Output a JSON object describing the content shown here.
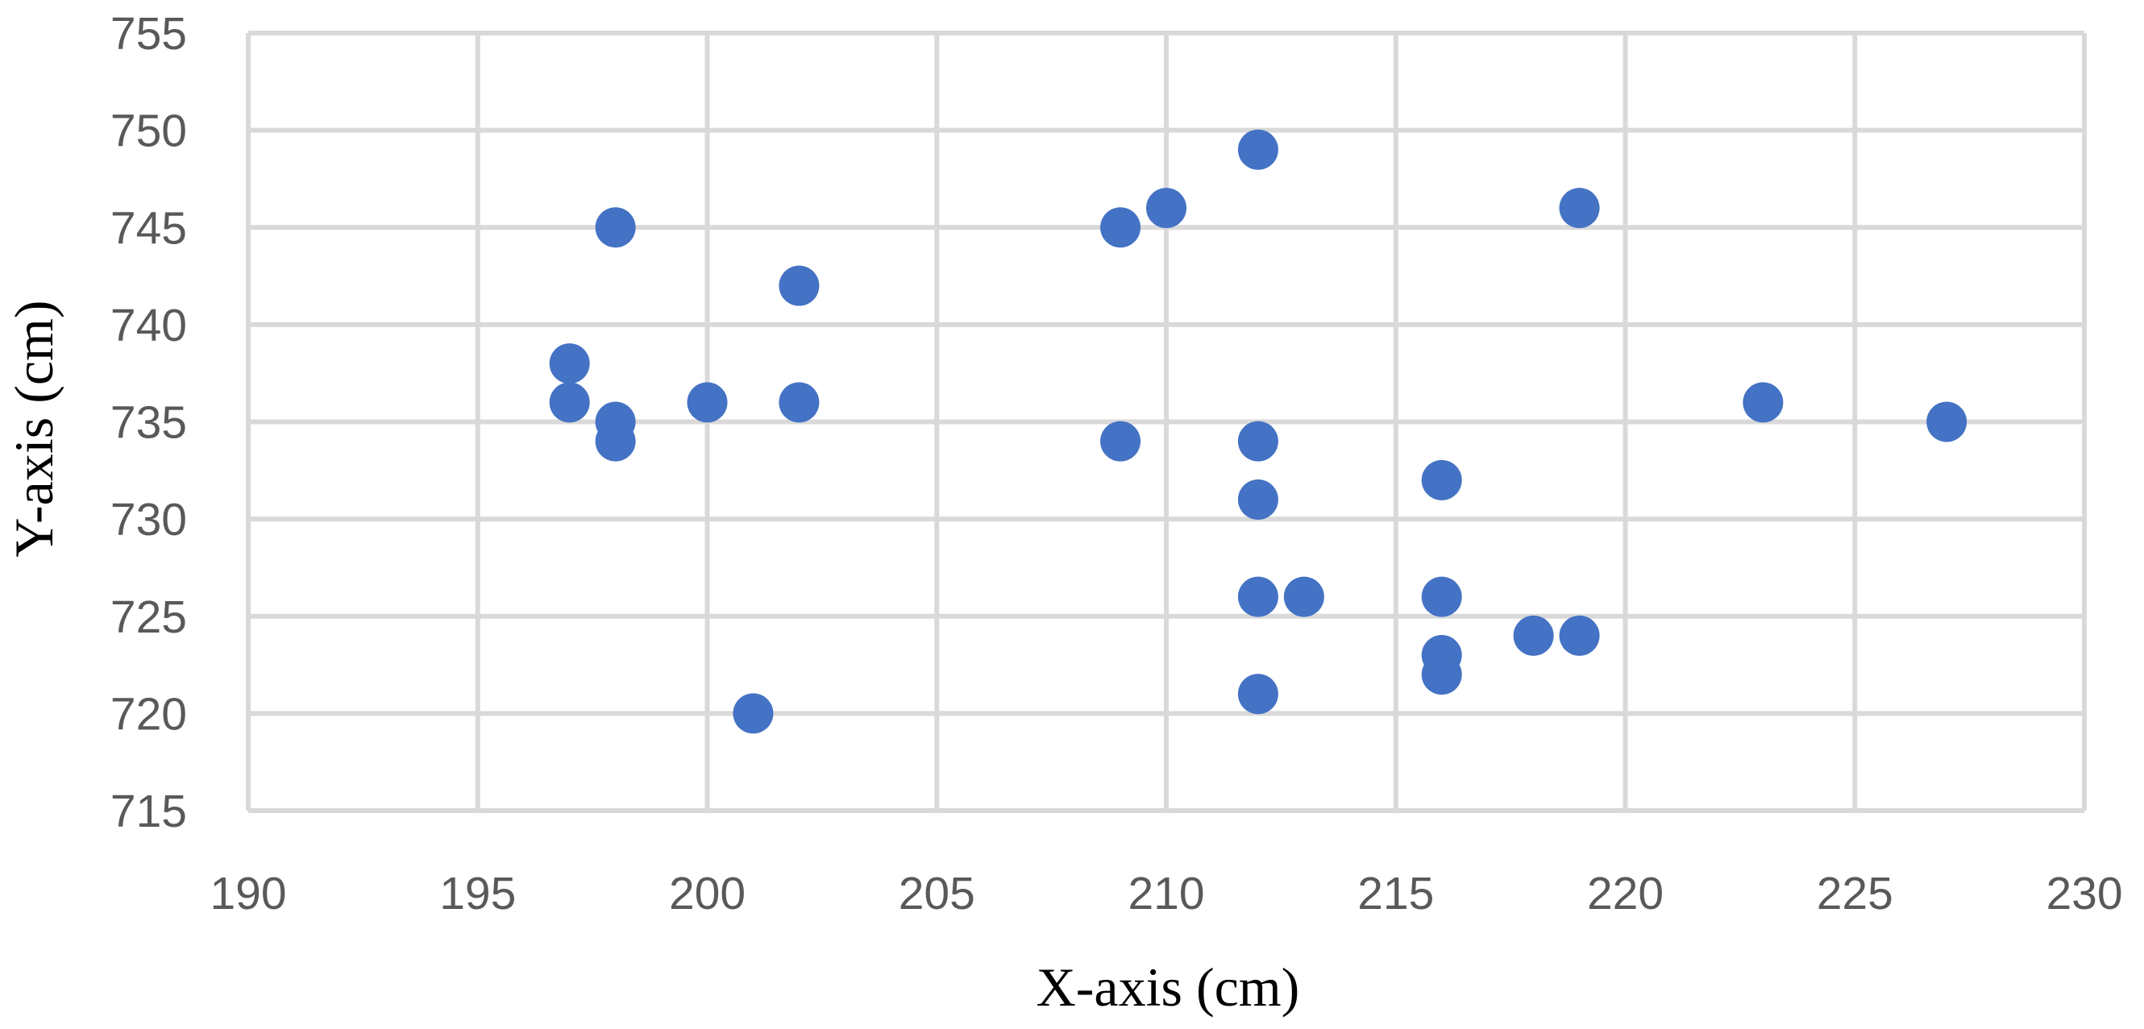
{
  "chart_data": {
    "type": "scatter",
    "title": "",
    "xlabel": "X-axis (cm)",
    "ylabel": "Y-axis (cm)",
    "xlim": [
      190,
      230
    ],
    "ylim": [
      715,
      755
    ],
    "x_ticks": [
      190,
      195,
      200,
      205,
      210,
      215,
      220,
      225,
      230
    ],
    "y_ticks": [
      715,
      720,
      725,
      730,
      735,
      740,
      745,
      750,
      755
    ],
    "grid": true,
    "legend": "none",
    "marker_color": "#4472c4",
    "points": [
      [
        197,
        738
      ],
      [
        197,
        736
      ],
      [
        198,
        745
      ],
      [
        198,
        735
      ],
      [
        198,
        734
      ],
      [
        200,
        736
      ],
      [
        201,
        720
      ],
      [
        202,
        742
      ],
      [
        202,
        736
      ],
      [
        209,
        745
      ],
      [
        209,
        734
      ],
      [
        210,
        746
      ],
      [
        212,
        749
      ],
      [
        212,
        734
      ],
      [
        212,
        731
      ],
      [
        212,
        726
      ],
      [
        212,
        721
      ],
      [
        213,
        726
      ],
      [
        216,
        732
      ],
      [
        216,
        726
      ],
      [
        216,
        723
      ],
      [
        216,
        722
      ],
      [
        218,
        724
      ],
      [
        219,
        746
      ],
      [
        219,
        724
      ],
      [
        223,
        736
      ],
      [
        227,
        735
      ]
    ]
  }
}
